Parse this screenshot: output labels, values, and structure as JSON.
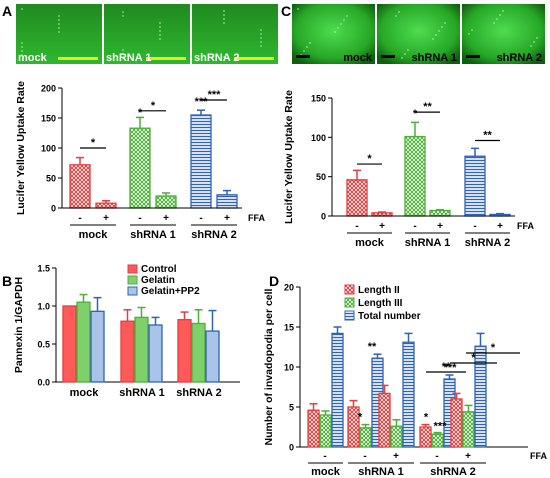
{
  "colors": {
    "red": "#e63c3c",
    "green": "#4caf38",
    "blue": "#2f63b4",
    "micro": "#3cc43c",
    "microDark": "#0e5f0e",
    "scale": "#e8e820"
  },
  "panelA": {
    "letter": "A",
    "images": [
      "mock",
      "shRNA 1",
      "shRNA 2"
    ],
    "treatment_label": "FFA",
    "chart_data": {
      "type": "bar",
      "ylabel": "Lucifer Yellow Uptake Rate",
      "ylim": [
        0,
        200
      ],
      "yticks": [
        "0",
        "50",
        "100",
        "150",
        "200"
      ],
      "groups": [
        "mock",
        "shRNA 1",
        "shRNA 2"
      ],
      "treatments": [
        "-",
        "+"
      ],
      "values": [
        [
          72,
          8
        ],
        [
          133,
          20
        ],
        [
          155,
          22
        ]
      ],
      "errors": [
        [
          12,
          4
        ],
        [
          18,
          5
        ],
        [
          8,
          7
        ]
      ],
      "significance": [
        "*",
        "*",
        "*",
        "***",
        "***"
      ]
    }
  },
  "panelC": {
    "letter": "C",
    "images": [
      "mock",
      "shRNA 1",
      "shRNA 2"
    ],
    "treatment_label": "FFA",
    "chart_data": {
      "type": "bar",
      "ylabel": "Lucifer Yellow Uptake Rate",
      "ylim": [
        0,
        150
      ],
      "yticks": [
        "0",
        "50",
        "100",
        "150"
      ],
      "groups": [
        "mock",
        "shRNA 1",
        "shRNA 2"
      ],
      "treatments": [
        "-",
        "+"
      ],
      "values": [
        [
          46,
          4
        ],
        [
          101,
          7
        ],
        [
          76,
          2
        ]
      ],
      "errors": [
        [
          12,
          1
        ],
        [
          18,
          1
        ],
        [
          10,
          1
        ]
      ],
      "significance": [
        "*",
        "*",
        "**",
        "**"
      ]
    }
  },
  "panelB": {
    "letter": "B",
    "chart_data": {
      "type": "bar",
      "ylabel": "Pannexin 1/GAPDH",
      "ylim": [
        0,
        1.5
      ],
      "yticks": [
        "0.0",
        "0.5",
        "1.0",
        "1.5"
      ],
      "categories": [
        "mock",
        "shRNA 1",
        "shRNA 2"
      ],
      "series": [
        {
          "name": "Control",
          "values": [
            1.0,
            0.8,
            0.82
          ],
          "errors": [
            0,
            0.15,
            0.1
          ]
        },
        {
          "name": "Gelatin",
          "values": [
            1.05,
            0.85,
            0.77
          ],
          "errors": [
            0.1,
            0.13,
            0.18
          ]
        },
        {
          "name": "Gelatin+PP2",
          "values": [
            0.93,
            0.75,
            0.67
          ],
          "errors": [
            0.18,
            0.1,
            0.27
          ]
        }
      ]
    }
  },
  "panelD": {
    "letter": "D",
    "treatment_label": "FFA",
    "chart_data": {
      "type": "bar",
      "ylabel": "Number of invadopodia per cell",
      "ylim": [
        0,
        20
      ],
      "yticks": [
        "0",
        "5",
        "10",
        "15",
        "20"
      ],
      "groups": [
        "mock",
        "shRNA 1",
        "shRNA 2"
      ],
      "treatments": [
        "-",
        "-",
        "+",
        "-",
        "+"
      ],
      "series": [
        {
          "name": "Length II",
          "values": [
            4.6,
            5.0,
            6.7,
            2.5,
            6.0
          ],
          "errors": [
            0.8,
            0.8,
            1.0,
            0.3,
            0.7
          ]
        },
        {
          "name": "Length III",
          "values": [
            4.0,
            2.4,
            2.6,
            1.6,
            4.4
          ],
          "errors": [
            0.5,
            0.4,
            0.8,
            0.2,
            0.8
          ]
        },
        {
          "name": "Total number",
          "values": [
            14.2,
            11.1,
            13.1,
            8.5,
            12.6
          ],
          "errors": [
            0.8,
            0.5,
            1.1,
            0.5,
            1.6
          ]
        }
      ],
      "significance": [
        "**",
        "*",
        "*",
        "***",
        "***",
        "**",
        "*",
        "*"
      ]
    }
  }
}
